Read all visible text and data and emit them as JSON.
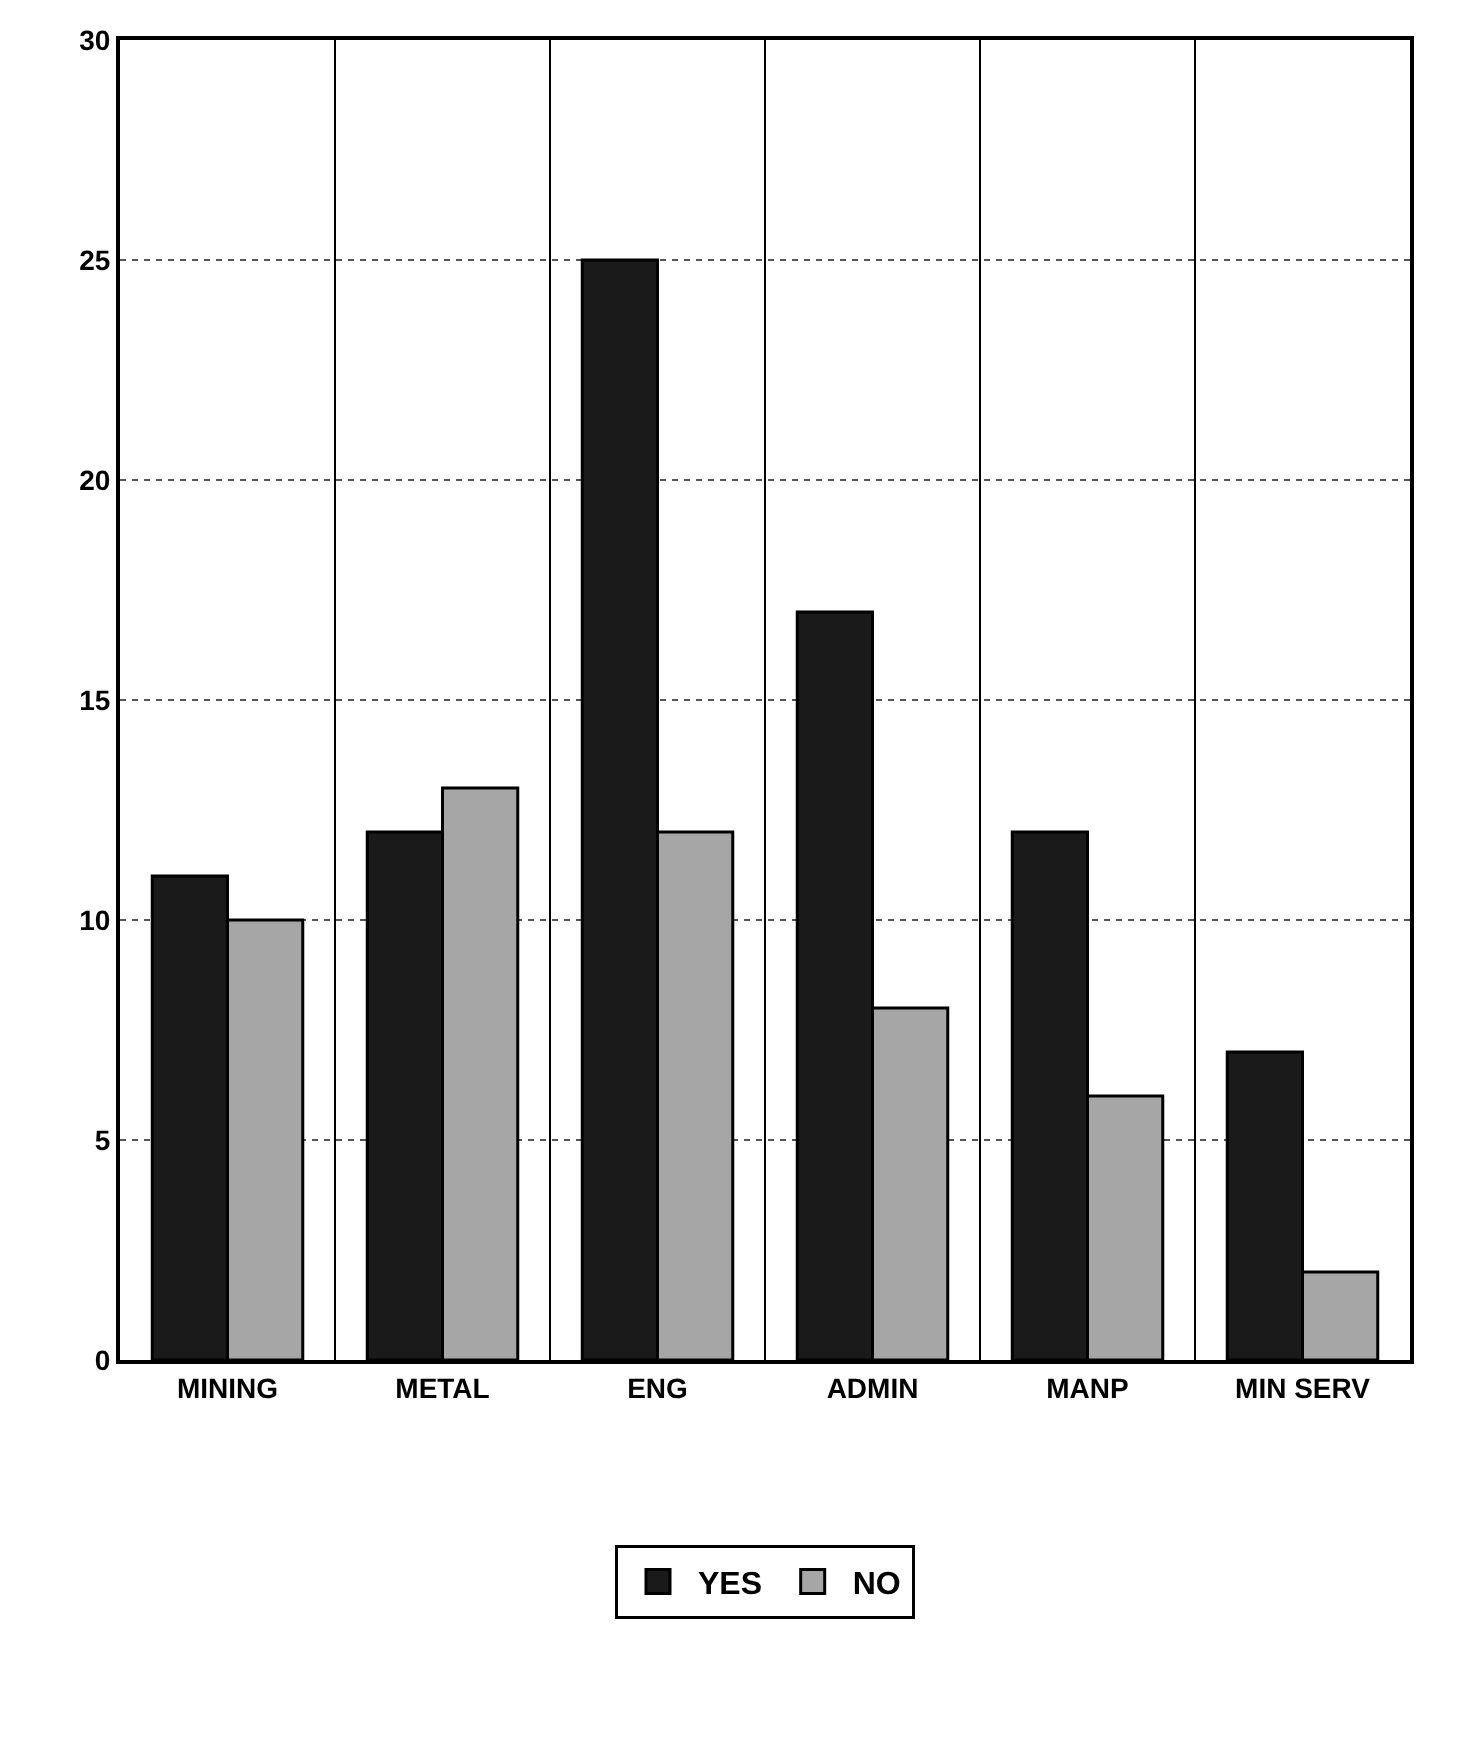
{
  "chart_data": {
    "type": "bar",
    "categories": [
      "MINING",
      "METAL",
      "ENG",
      "ADMIN",
      "MANP",
      "MIN SERV"
    ],
    "series": [
      {
        "name": "YES",
        "color": "#1a1a1a",
        "values": [
          11,
          12,
          25,
          17,
          12,
          7
        ]
      },
      {
        "name": "NO",
        "color": "#a6a6a6",
        "values": [
          10,
          13,
          12,
          8,
          6,
          2
        ]
      }
    ],
    "ylim": [
      0,
      30
    ],
    "yticks": [
      0,
      5,
      10,
      15,
      20,
      25,
      30
    ],
    "grid": true,
    "legend": "bottom"
  }
}
